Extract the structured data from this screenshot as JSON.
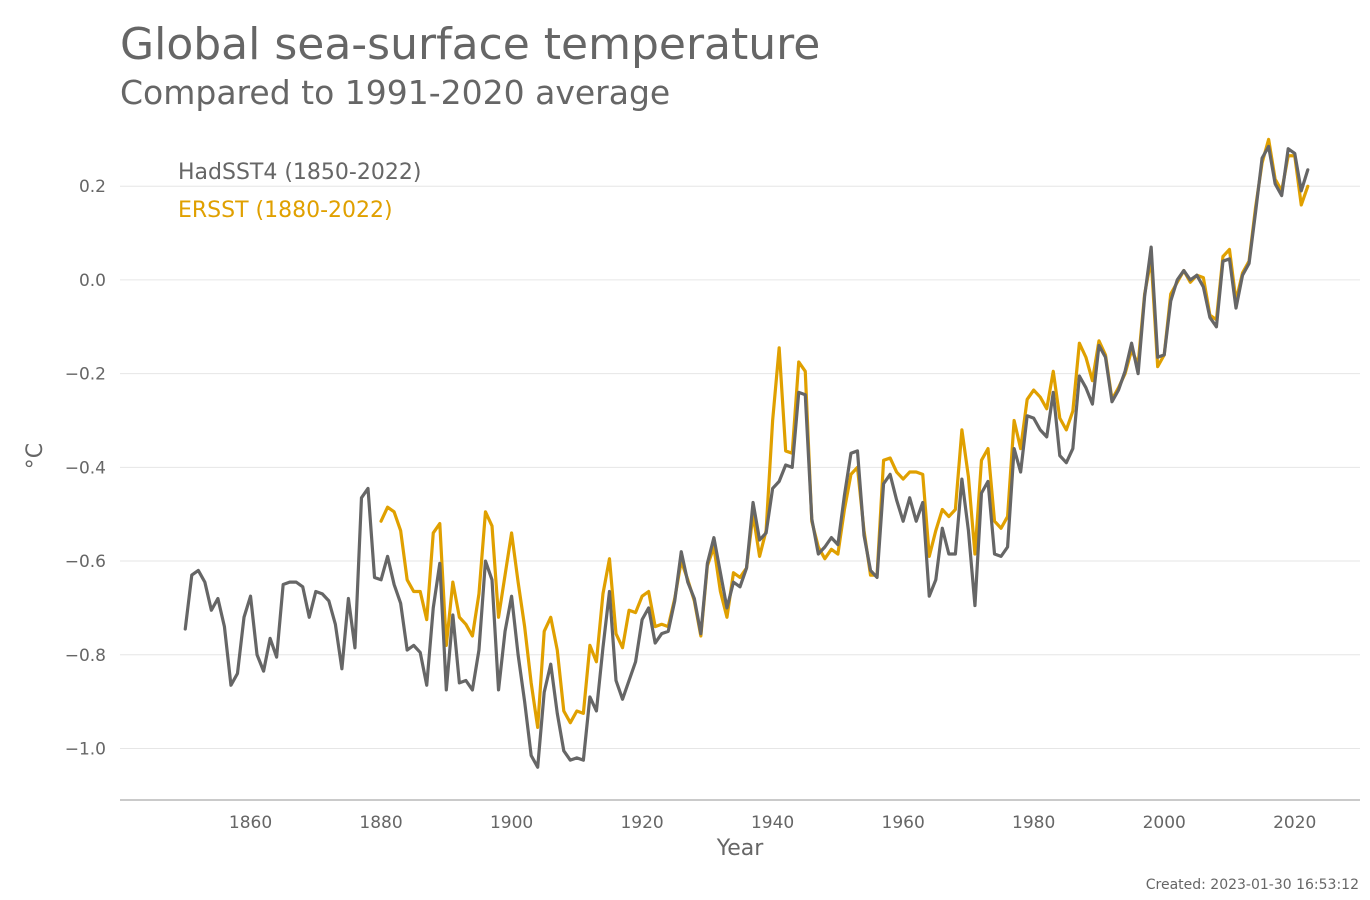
{
  "created": "Created: 2023-01-30 16:53:12",
  "chart_data": {
    "type": "line",
    "title": "Global sea-surface temperature",
    "subtitle": "Compared to 1991-2020 average",
    "xlabel": "Year",
    "ylabel": "°C",
    "xlim": [
      1840,
      2030
    ],
    "ylim": [
      -1.11,
      0.32
    ],
    "x_ticks": [
      1860,
      1880,
      1900,
      1920,
      1940,
      1960,
      1980,
      2000,
      2020
    ],
    "x_tick_labels": [
      "1860",
      "1880",
      "1900",
      "1920",
      "1940",
      "1960",
      "1980",
      "2000",
      "2020"
    ],
    "y_ticks": [
      -1.0,
      -0.8,
      -0.6,
      -0.4,
      -0.2,
      0.0,
      0.2
    ],
    "y_tick_labels": [
      "−1.0",
      "−0.8",
      "−0.6",
      "−0.4",
      "−0.2",
      "0.0",
      "0.2"
    ],
    "grid": "horizontal",
    "legend_position": "top-left",
    "series": [
      {
        "name": "ERSST (1880-2022)",
        "color": "#e0a000",
        "x_start": 1880,
        "values": [
          -0.515,
          -0.485,
          -0.495,
          -0.535,
          -0.64,
          -0.665,
          -0.665,
          -0.725,
          -0.54,
          -0.52,
          -0.78,
          -0.645,
          -0.72,
          -0.735,
          -0.76,
          -0.67,
          -0.495,
          -0.525,
          -0.72,
          -0.63,
          -0.54,
          -0.645,
          -0.74,
          -0.86,
          -0.955,
          -0.75,
          -0.72,
          -0.79,
          -0.92,
          -0.945,
          -0.92,
          -0.925,
          -0.78,
          -0.815,
          -0.67,
          -0.595,
          -0.755,
          -0.785,
          -0.705,
          -0.71,
          -0.675,
          -0.665,
          -0.74,
          -0.735,
          -0.74,
          -0.68,
          -0.6,
          -0.64,
          -0.685,
          -0.76,
          -0.61,
          -0.57,
          -0.665,
          -0.72,
          -0.625,
          -0.635,
          -0.615,
          -0.5,
          -0.59,
          -0.535,
          -0.3,
          -0.145,
          -0.365,
          -0.37,
          -0.175,
          -0.195,
          -0.515,
          -0.57,
          -0.595,
          -0.575,
          -0.585,
          -0.49,
          -0.415,
          -0.4,
          -0.535,
          -0.63,
          -0.63,
          -0.385,
          -0.38,
          -0.41,
          -0.425,
          -0.41,
          -0.41,
          -0.415,
          -0.59,
          -0.535,
          -0.49,
          -0.505,
          -0.49,
          -0.32,
          -0.42,
          -0.585,
          -0.385,
          -0.36,
          -0.515,
          -0.53,
          -0.505,
          -0.3,
          -0.36,
          -0.255,
          -0.235,
          -0.25,
          -0.275,
          -0.195,
          -0.295,
          -0.32,
          -0.28,
          -0.135,
          -0.165,
          -0.215,
          -0.13,
          -0.16,
          -0.255,
          -0.23,
          -0.2,
          -0.15,
          -0.18,
          -0.03,
          0.045,
          -0.185,
          -0.16,
          -0.03,
          -0.005,
          0.02,
          -0.005,
          0.01,
          0.005,
          -0.075,
          -0.085,
          0.05,
          0.065,
          -0.045,
          0.015,
          0.04,
          0.155,
          0.25,
          0.3,
          0.215,
          0.19,
          0.265,
          0.265,
          0.16,
          0.2
        ]
      },
      {
        "name": "HadSST4 (1850-2022)",
        "color": "#666666",
        "x_start": 1850,
        "values": [
          -0.745,
          -0.63,
          -0.62,
          -0.645,
          -0.705,
          -0.68,
          -0.74,
          -0.865,
          -0.84,
          -0.72,
          -0.675,
          -0.8,
          -0.835,
          -0.765,
          -0.805,
          -0.65,
          -0.645,
          -0.645,
          -0.655,
          -0.72,
          -0.665,
          -0.67,
          -0.685,
          -0.735,
          -0.83,
          -0.68,
          -0.785,
          -0.465,
          -0.445,
          -0.635,
          -0.64,
          -0.59,
          -0.65,
          -0.69,
          -0.79,
          -0.78,
          -0.795,
          -0.865,
          -0.7,
          -0.605,
          -0.875,
          -0.715,
          -0.86,
          -0.855,
          -0.875,
          -0.79,
          -0.6,
          -0.64,
          -0.875,
          -0.75,
          -0.675,
          -0.8,
          -0.9,
          -1.015,
          -1.04,
          -0.88,
          -0.82,
          -0.925,
          -1.005,
          -1.025,
          -1.02,
          -1.025,
          -0.89,
          -0.92,
          -0.785,
          -0.665,
          -0.855,
          -0.895,
          -0.855,
          -0.815,
          -0.725,
          -0.7,
          -0.775,
          -0.755,
          -0.75,
          -0.685,
          -0.58,
          -0.645,
          -0.68,
          -0.755,
          -0.605,
          -0.55,
          -0.625,
          -0.7,
          -0.645,
          -0.655,
          -0.615,
          -0.475,
          -0.555,
          -0.54,
          -0.445,
          -0.43,
          -0.395,
          -0.4,
          -0.24,
          -0.245,
          -0.51,
          -0.585,
          -0.57,
          -0.55,
          -0.565,
          -0.46,
          -0.37,
          -0.365,
          -0.545,
          -0.62,
          -0.635,
          -0.435,
          -0.415,
          -0.47,
          -0.515,
          -0.465,
          -0.515,
          -0.475,
          -0.675,
          -0.64,
          -0.53,
          -0.585,
          -0.585,
          -0.425,
          -0.535,
          -0.695,
          -0.455,
          -0.43,
          -0.585,
          -0.59,
          -0.57,
          -0.36,
          -0.41,
          -0.29,
          -0.295,
          -0.32,
          -0.335,
          -0.24,
          -0.375,
          -0.39,
          -0.36,
          -0.205,
          -0.23,
          -0.265,
          -0.14,
          -0.165,
          -0.26,
          -0.235,
          -0.195,
          -0.135,
          -0.2,
          -0.035,
          0.07,
          -0.165,
          -0.16,
          -0.045,
          0.0,
          0.02,
          0.0,
          0.01,
          -0.015,
          -0.08,
          -0.1,
          0.04,
          0.045,
          -0.06,
          0.01,
          0.035,
          0.145,
          0.26,
          0.285,
          0.205,
          0.18,
          0.28,
          0.27,
          0.19,
          0.235
        ]
      }
    ]
  }
}
